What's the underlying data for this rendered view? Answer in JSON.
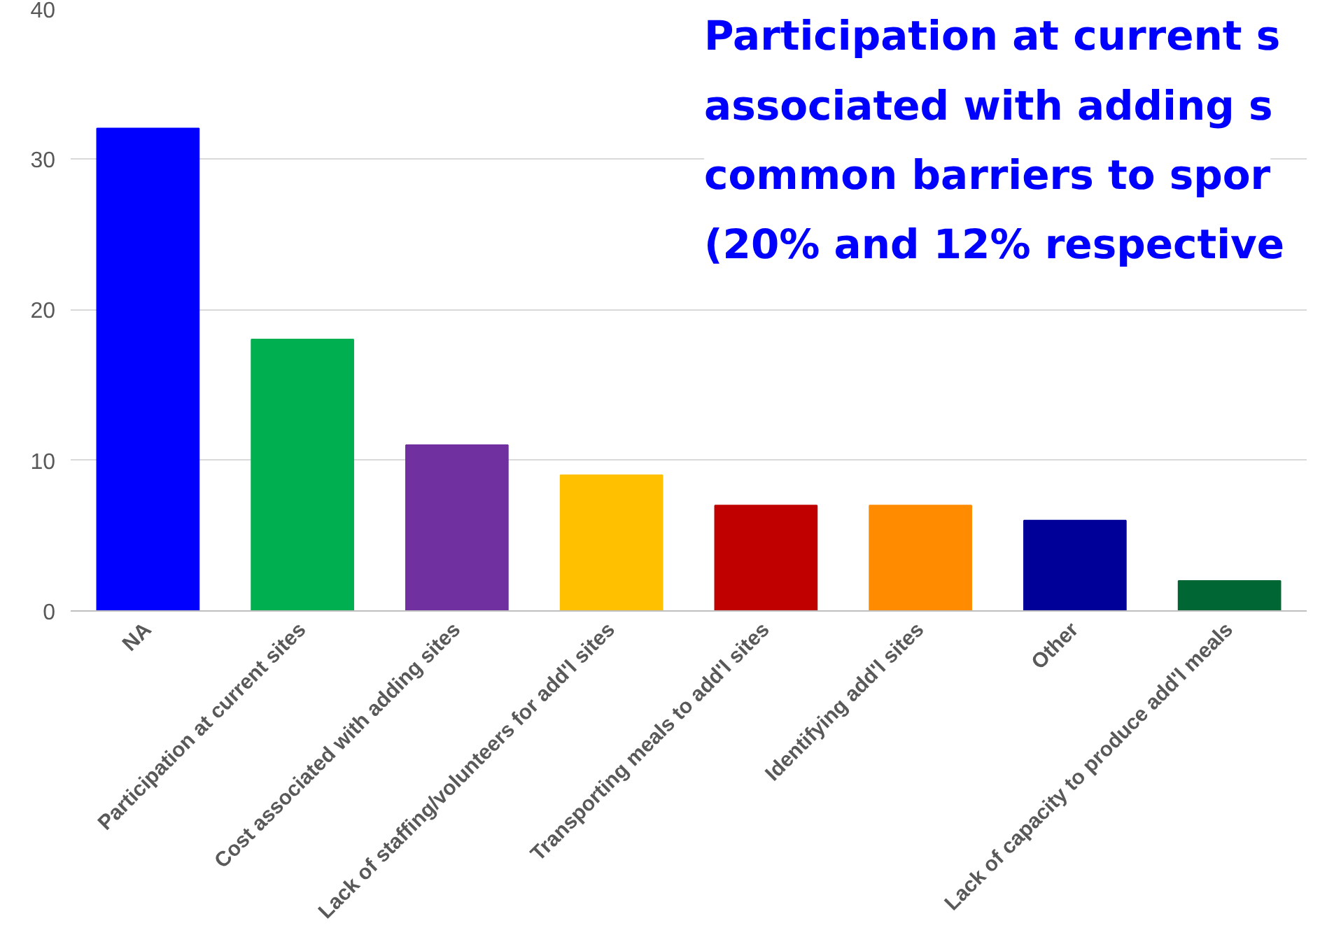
{
  "chart_data": {
    "type": "bar",
    "categories": [
      "NA",
      "Participation at current sites",
      "Cost associated with adding sites",
      "Lack of staffing/volunteers for add'l sites",
      "Transporting meals to add'l sites",
      "Identifying add'l sites",
      "Other",
      "Lack of capacity to produce add'l meals"
    ],
    "values": [
      32,
      18,
      11,
      9,
      7,
      7,
      6,
      2
    ],
    "colors": [
      "#0000ff",
      "#00b050",
      "#7030a0",
      "#ffc000",
      "#c00000",
      "#ff8c00",
      "#000099",
      "#006633"
    ],
    "ylim": [
      0,
      40
    ],
    "yticks": [
      0,
      10,
      20,
      30,
      40
    ],
    "grid": "y",
    "annotations": [
      "Participation at current s\nassociated with adding s\ncommon barriers to spor\n(20% and 12% respective"
    ]
  }
}
